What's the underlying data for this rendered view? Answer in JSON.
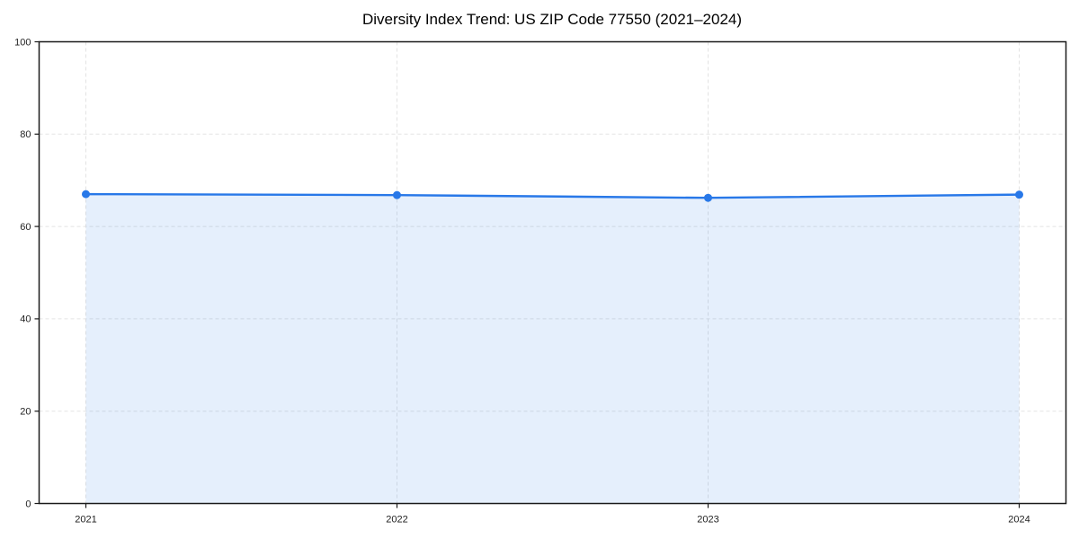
{
  "chart_data": {
    "type": "area",
    "title": "Diversity Index Trend: US ZIP Code 77550 (2021–2024)",
    "x": [
      "2021",
      "2022",
      "2023",
      "2024"
    ],
    "series": [
      {
        "name": "Diversity Index",
        "values": [
          67.0,
          66.8,
          66.2,
          66.9
        ]
      }
    ],
    "xlabel": "",
    "ylabel": "",
    "ylim": [
      0,
      100
    ],
    "yticks": [
      0,
      20,
      40,
      60,
      80,
      100
    ],
    "grid": true,
    "grid_style": "dashed",
    "legend": false,
    "marker": "circle",
    "colors": {
      "line": "#2878e8",
      "fill": "rgba(40,120,232,0.12)",
      "grid": "#e3e3e3",
      "spine": "#1a1a1a",
      "text": "#1f1f1f",
      "title": "#000000"
    }
  }
}
